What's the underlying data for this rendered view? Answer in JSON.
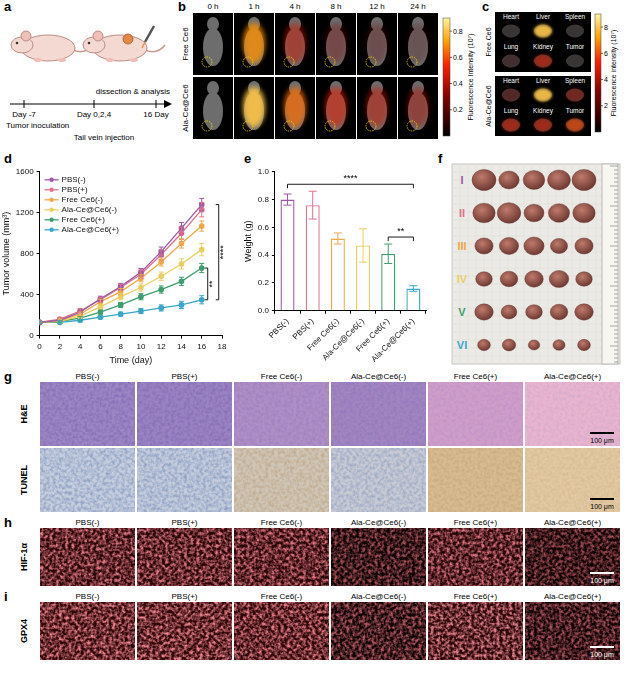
{
  "chart_data": [
    {
      "letter": "d",
      "type": "line",
      "x_label": "Time (day)",
      "y_label": "Tumor volume (mm³)",
      "x": [
        0,
        2,
        4,
        6,
        8,
        10,
        12,
        14,
        16
      ],
      "xlim": [
        0,
        18
      ],
      "xticks": [
        0,
        2,
        4,
        6,
        8,
        10,
        12,
        14,
        16,
        18
      ],
      "ylim": [
        0,
        1600
      ],
      "yticks": [
        0,
        400,
        800,
        1200,
        1600
      ],
      "grid": false,
      "legend": "upper left",
      "series": [
        {
          "name": "PBS(-)",
          "color": "#9b59a6",
          "values": [
            130,
            150,
            230,
            360,
            480,
            620,
            820,
            1050,
            1280
          ],
          "errors": [
            10,
            15,
            20,
            25,
            30,
            35,
            45,
            55,
            60
          ]
        },
        {
          "name": "PBS(+)",
          "color": "#e0728a",
          "values": [
            130,
            160,
            240,
            350,
            470,
            600,
            790,
            1000,
            1230
          ],
          "errors": [
            10,
            15,
            25,
            25,
            30,
            40,
            50,
            60,
            70
          ]
        },
        {
          "name": "Free Ce6(-)",
          "color": "#f0a848",
          "values": [
            130,
            150,
            210,
            330,
            430,
            560,
            720,
            900,
            1070
          ],
          "errors": [
            10,
            15,
            20,
            25,
            30,
            35,
            40,
            45,
            50
          ]
        },
        {
          "name": "Ala-Ce@Ce6(-)",
          "color": "#e9cf62",
          "values": [
            130,
            140,
            190,
            280,
            380,
            470,
            580,
            700,
            840
          ],
          "errors": [
            10,
            15,
            20,
            25,
            30,
            35,
            40,
            50,
            60
          ]
        },
        {
          "name": "Free Ce6(+)",
          "color": "#3f9e6e",
          "values": [
            130,
            140,
            170,
            230,
            300,
            380,
            450,
            530,
            660
          ],
          "errors": [
            10,
            10,
            15,
            20,
            25,
            30,
            35,
            40,
            45
          ]
        },
        {
          "name": "Ala-Ce@Ce6(+)",
          "color": "#3aa6c9",
          "values": [
            130,
            130,
            150,
            180,
            210,
            240,
            270,
            300,
            350
          ],
          "errors": [
            10,
            10,
            10,
            15,
            20,
            25,
            30,
            35,
            40
          ]
        }
      ],
      "significance": [
        {
          "from": "PBS(-)",
          "to": "Ala-Ce@Ce6(+)",
          "label": "****"
        },
        {
          "from": "Free Ce6(+)",
          "to": "Ala-Ce@Ce6(+)",
          "label": "**"
        }
      ]
    },
    {
      "letter": "e",
      "type": "bar",
      "y_label": "Weight (g)",
      "categories": [
        "PBS(-)",
        "PBS(+)",
        "Free Ce6(-)",
        "Ala-Ce@Ce6(-)",
        "Free Ce6(+)",
        "Ala-Ce@Ce6(+)"
      ],
      "values": [
        0.8,
        0.76,
        0.52,
        0.47,
        0.41,
        0.16
      ],
      "errors": [
        0.04,
        0.1,
        0.04,
        0.12,
        0.07,
        0.02
      ],
      "colors": [
        "#9b59a6",
        "#e0728a",
        "#f0a848",
        "#e9cf62",
        "#3f9e6e",
        "#3aa6c9"
      ],
      "ylim": [
        0,
        1
      ],
      "yticks": [
        {
          "value": 0,
          "label": "0.0"
        },
        0.2,
        0.4,
        0.6,
        0.8,
        {
          "value": 1,
          "label": "1.0"
        }
      ],
      "grid": false,
      "significance": [
        {
          "from": "PBS(-)",
          "to": "Ala-Ce@Ce6(+)",
          "label": "****"
        },
        {
          "from": "Free Ce6(+)",
          "to": "Ala-Ce@Ce6(+)",
          "label": "**"
        }
      ]
    }
  ],
  "schematic": {
    "letter": "a",
    "day_start": "Day -7",
    "start_event": "Tumor inoculation",
    "injection_days": "Day 0,2,4",
    "injection_event": "Tail vein injection",
    "end_event": "dissection & analysis",
    "day_end": "16 Day"
  },
  "imaging": {
    "letter": "b",
    "times": [
      "0 h",
      "1 h",
      "4 h",
      "8 h",
      "12 h",
      "24 h"
    ],
    "groups": [
      "Free Ce6",
      "Ala-Ce@Ce6"
    ],
    "intensity": [
      [
        0,
        0.7,
        0.45,
        0.3,
        0.25,
        0.2
      ],
      [
        0,
        0.8,
        0.65,
        0.5,
        0.45,
        0.4
      ]
    ],
    "colorbar": {
      "label": "Fluorescence Intensity (10⁷)",
      "ticks": [
        0.2,
        0.4,
        0.6,
        0.8
      ]
    }
  },
  "ex_vivo": {
    "letter": "c",
    "organs": [
      "Heart",
      "Liver",
      "Spleen",
      "Lung",
      "Kidney",
      "Tumor"
    ],
    "groups": [
      "Free Ce6",
      "Ala-Ce@Ce6"
    ],
    "intensity": [
      [
        1,
        8,
        1,
        2,
        5,
        1
      ],
      [
        3,
        8,
        4,
        5,
        5,
        6
      ]
    ],
    "colorbar": {
      "label": "Fluorescence intensity (10⁷)",
      "ticks": [
        2,
        4,
        6,
        8
      ]
    }
  },
  "tumor_photo": {
    "letter": "f",
    "rows": [
      "I",
      "II",
      "III",
      "IV",
      "V",
      "VI"
    ]
  },
  "histology": {
    "groups": [
      "PBS(-)",
      "PBS(+)",
      "Free Ce6(-)",
      "Ala-Ce@Ce6(-)",
      "Free Ce6(+)",
      "Ala-Ce@Ce6(+)"
    ],
    "scale_bar": "100 μm",
    "panels": [
      {
        "letter": "g",
        "stains": [
          "H&E",
          "TUNEL"
        ]
      },
      {
        "letter": "h",
        "stains": [
          "HIF-1α"
        ]
      },
      {
        "letter": "i",
        "stains": [
          "GPX4"
        ]
      }
    ]
  }
}
